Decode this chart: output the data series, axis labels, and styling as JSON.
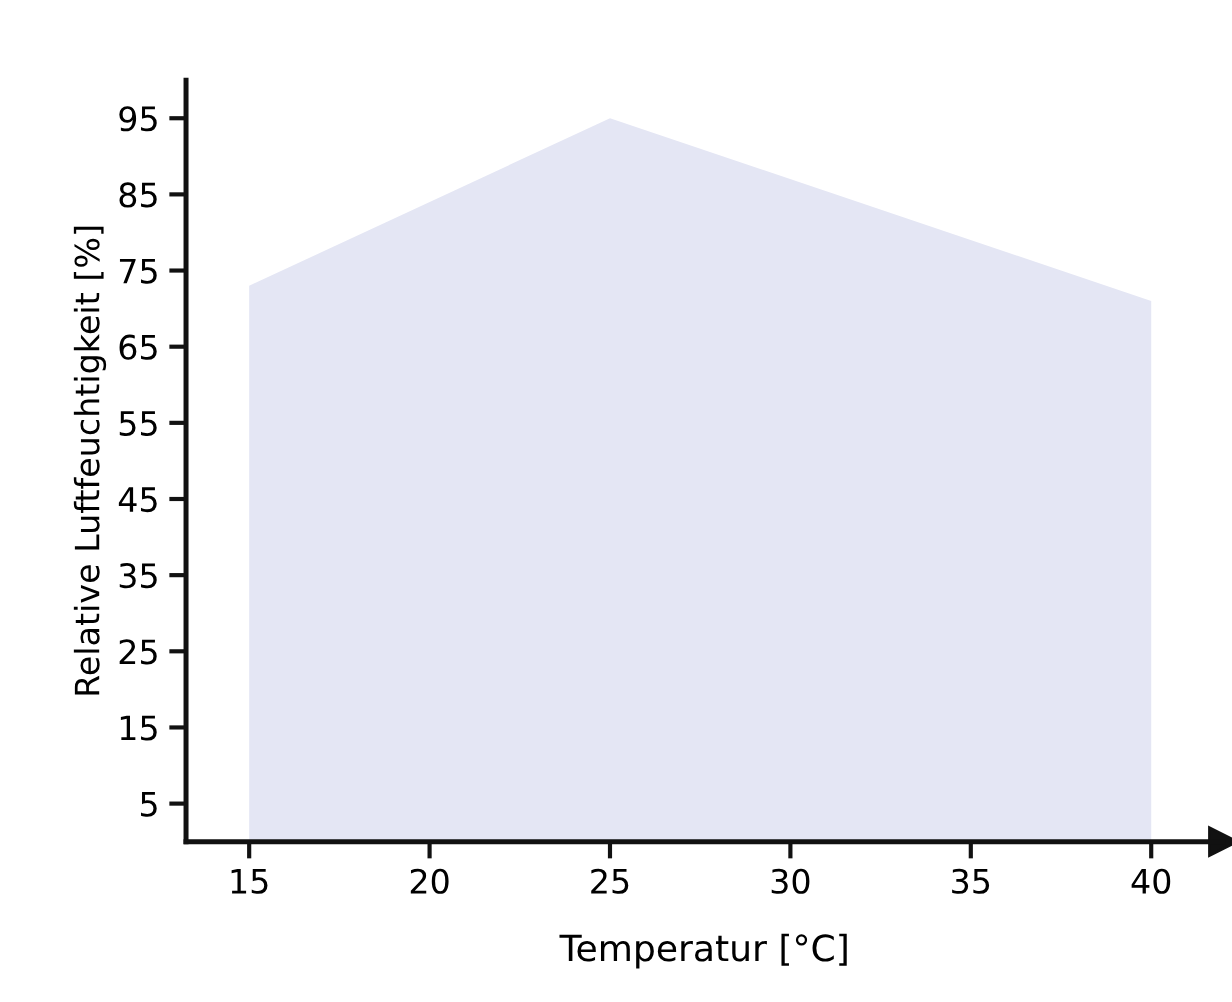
{
  "chart_data": {
    "type": "area",
    "xlabel": "Temperatur [°C]",
    "ylabel": "Relative Luftfeuchtigkeit [%]",
    "x": [
      15,
      25,
      40
    ],
    "series": [
      {
        "color": "#e4e6f4",
        "values": [
          73,
          95,
          71
        ]
      }
    ],
    "xlim": [
      13.25,
      42
    ],
    "ylim": [
      0,
      100
    ],
    "xticks": [
      15,
      20,
      25,
      30,
      35,
      40
    ],
    "yticks": [
      5,
      15,
      25,
      35,
      45,
      55,
      65,
      75,
      85,
      95
    ],
    "grid": false,
    "legend": false
  }
}
